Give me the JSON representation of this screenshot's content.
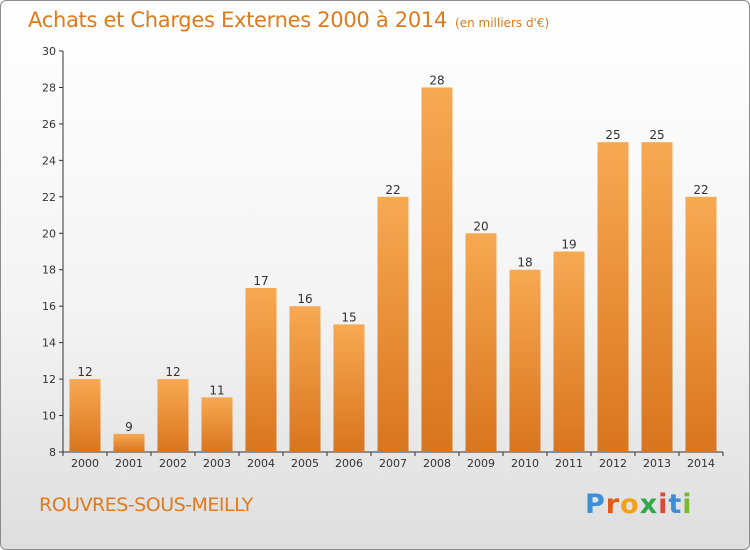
{
  "header": {
    "title": "Achats et Charges Externes 2000 à 2014",
    "unit": "(en milliers d'€)"
  },
  "footer": {
    "commune": "ROUVRES-SOUS-MEILLY",
    "logo": "Proxiti"
  },
  "colors": {
    "bar_top": "#f7a952",
    "bar_bottom": "#d9751e",
    "accent": "#e07a1a",
    "logo_letters": [
      "#3c8fd8",
      "#e05a1c",
      "#f2a21a",
      "#2fa84a",
      "#d84a3a",
      "#3c8fd8",
      "#7ab82f"
    ]
  },
  "chart_data": {
    "type": "bar",
    "categories": [
      "2000",
      "2001",
      "2002",
      "2003",
      "2004",
      "2005",
      "2006",
      "2007",
      "2008",
      "2009",
      "2010",
      "2011",
      "2012",
      "2013",
      "2014"
    ],
    "values": [
      12,
      9,
      12,
      11,
      17,
      16,
      15,
      22,
      28,
      20,
      18,
      19,
      25,
      25,
      22
    ],
    "ylim": [
      8,
      30
    ],
    "yticks": [
      8,
      10,
      12,
      14,
      16,
      18,
      20,
      22,
      24,
      26,
      28,
      30
    ],
    "grid": false,
    "xlabel": "",
    "ylabel": ""
  }
}
